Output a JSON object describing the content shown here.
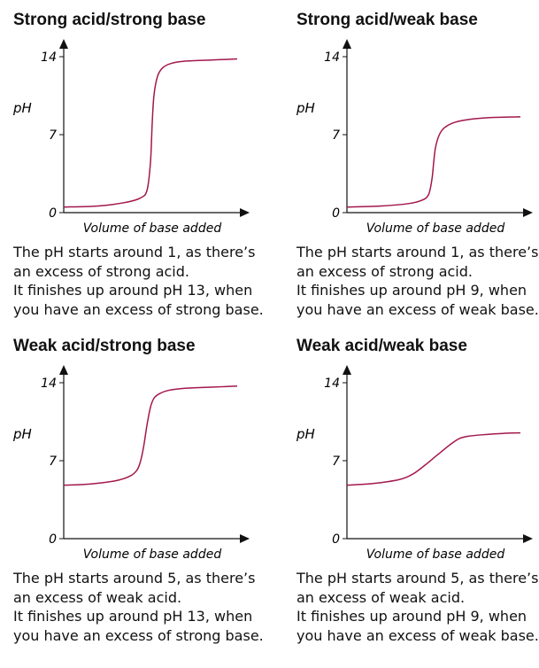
{
  "chart_data": [
    {
      "type": "line",
      "title": "Strong acid/strong base",
      "xlabel": "Volume of base added",
      "ylabel": "pH",
      "yticks": [
        "0",
        "7",
        "14"
      ],
      "ylim": [
        0,
        14
      ],
      "xlim": [
        0,
        100
      ],
      "x": [
        0,
        20,
        35,
        44,
        48,
        50,
        51,
        52,
        54,
        57,
        62,
        70,
        85,
        100
      ],
      "y": [
        0.5,
        0.6,
        0.9,
        1.3,
        2.0,
        4.5,
        8,
        10.5,
        12.2,
        13.0,
        13.4,
        13.6,
        13.7,
        13.8
      ],
      "text": [
        "The pH starts around 1, as there’s",
        "an excess of strong acid.",
        "It finishes up around pH 13, when",
        "you have an excess of strong base."
      ]
    },
    {
      "type": "line",
      "title": "Strong acid/weak base",
      "xlabel": "Volume of base added",
      "ylabel": "pH",
      "yticks": [
        "0",
        "7",
        "14"
      ],
      "ylim": [
        0,
        14
      ],
      "xlim": [
        0,
        100
      ],
      "x": [
        0,
        20,
        35,
        43,
        47,
        49,
        50,
        51,
        53,
        56,
        62,
        72,
        85,
        100
      ],
      "y": [
        0.5,
        0.6,
        0.8,
        1.1,
        1.6,
        3.0,
        4.5,
        5.8,
        6.9,
        7.6,
        8.1,
        8.4,
        8.55,
        8.6
      ],
      "text": [
        "The pH starts around 1, as there’s",
        "an excess of strong acid.",
        "It finishes up around pH 9, when",
        "you have an excess of weak base."
      ]
    },
    {
      "type": "line",
      "title": "Weak acid/strong base",
      "xlabel": "Volume of base added",
      "ylabel": "pH",
      "yticks": [
        "0",
        "7",
        "14"
      ],
      "ylim": [
        0,
        14
      ],
      "xlim": [
        0,
        100
      ],
      "x": [
        0,
        15,
        30,
        38,
        42,
        44,
        46,
        48,
        50,
        52,
        55,
        60,
        70,
        85,
        100
      ],
      "y": [
        4.8,
        4.9,
        5.2,
        5.6,
        6.1,
        6.8,
        8.2,
        10.2,
        11.8,
        12.6,
        13.0,
        13.3,
        13.5,
        13.6,
        13.7
      ],
      "text": [
        "The pH starts around 5, as there’s",
        "an excess of weak acid.",
        "It finishes up around pH 13, when",
        "you have an excess of strong base."
      ]
    },
    {
      "type": "line",
      "title": "Weak acid/weak base",
      "xlabel": "Volume of base added",
      "ylabel": "pH",
      "yticks": [
        "0",
        "7",
        "14"
      ],
      "ylim": [
        0,
        14
      ],
      "xlim": [
        0,
        100
      ],
      "x": [
        0,
        15,
        30,
        38,
        45,
        52,
        60,
        65,
        70,
        80,
        90,
        100
      ],
      "y": [
        4.8,
        4.95,
        5.3,
        5.8,
        6.6,
        7.5,
        8.5,
        9.0,
        9.2,
        9.35,
        9.45,
        9.5
      ],
      "text": [
        "The pH starts around 5, as there’s",
        "an excess of weak acid.",
        "It finishes up around pH 9, when",
        "you have an excess of weak base."
      ]
    }
  ],
  "colors": {
    "curve": "#a3174d",
    "axis": "#111111"
  }
}
